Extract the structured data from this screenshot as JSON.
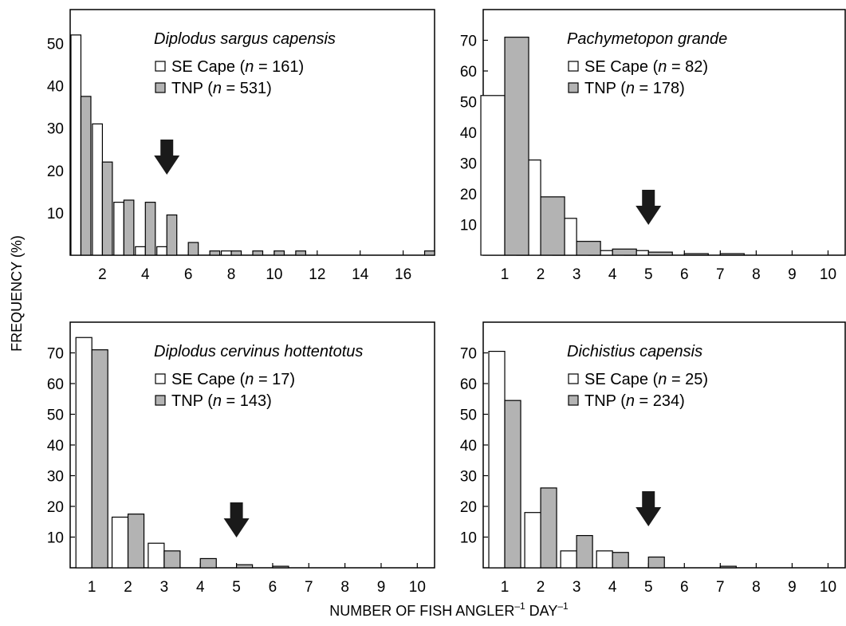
{
  "figure": {
    "ylabel": "FREQUENCY (%)",
    "xlabel": "NUMBER OF FISH ANGLER",
    "xlabel_sup1": "–1",
    "xlabel_mid": " DAY",
    "xlabel_sup2": "–1",
    "colors": {
      "se_cape": "#ffffff",
      "tnp": "#b3b3b3",
      "stroke": "#000000",
      "arrow": "#1a1a1a"
    }
  },
  "chart_data": [
    {
      "type": "bar",
      "title": "Diplodus sargus capensis",
      "legend": [
        {
          "name": "SE Cape",
          "n_prefix": "(",
          "n_italic": "n",
          "n_text": " = 161)"
        },
        {
          "name": "TNP",
          "n_prefix": "(",
          "n_italic": "n",
          "n_text": " = 531)"
        }
      ],
      "x": [
        1,
        2,
        3,
        4,
        5,
        6,
        7,
        8,
        9,
        10,
        11,
        12,
        13,
        14,
        15,
        16,
        17
      ],
      "xticks": [
        2,
        4,
        6,
        8,
        10,
        12,
        14,
        16
      ],
      "xlim": [
        0.5,
        17.5
      ],
      "yticks": [
        10,
        20,
        30,
        40,
        50
      ],
      "ylim": [
        0,
        58
      ],
      "series": [
        {
          "name": "SE Cape",
          "values": [
            52,
            31,
            12.5,
            2,
            2,
            0,
            0,
            1,
            0,
            0,
            0,
            0,
            0,
            0,
            0,
            0,
            0
          ]
        },
        {
          "name": "TNP",
          "values": [
            37.5,
            22,
            13,
            12.5,
            9.5,
            3,
            1,
            1,
            1,
            1,
            1,
            0,
            0,
            0,
            0,
            0,
            1
          ]
        }
      ],
      "arrow_x": 5
    },
    {
      "type": "bar",
      "title": "Pachymetopon grande",
      "legend": [
        {
          "name": "SE Cape",
          "n_prefix": "(",
          "n_italic": "n",
          "n_text": " = 82)"
        },
        {
          "name": "TNP",
          "n_prefix": "(",
          "n_italic": "n",
          "n_text": " = 178)"
        }
      ],
      "x": [
        1,
        2,
        3,
        4,
        5,
        6,
        7,
        8,
        9,
        10
      ],
      "xticks": [
        1,
        2,
        3,
        4,
        5,
        6,
        7,
        8,
        9,
        10
      ],
      "xlim": [
        0.4,
        10.5
      ],
      "yticks": [
        10,
        20,
        30,
        40,
        50,
        60,
        70
      ],
      "ylim": [
        0,
        80
      ],
      "series": [
        {
          "name": "SE Cape",
          "values": [
            52,
            31,
            12,
            1.5,
            1.5,
            0,
            0,
            0,
            0,
            0
          ]
        },
        {
          "name": "TNP",
          "values": [
            71,
            19,
            4.5,
            2,
            1,
            0.5,
            0.5,
            0,
            0,
            0
          ]
        }
      ],
      "arrow_x": 5
    },
    {
      "type": "bar",
      "title": "Diplodus cervinus hottentotus",
      "legend": [
        {
          "name": "SE Cape",
          "n_prefix": "(",
          "n_italic": "n",
          "n_text": " = 17)"
        },
        {
          "name": "TNP",
          "n_prefix": "(",
          "n_italic": "n",
          "n_text": " = 143)"
        }
      ],
      "x": [
        1,
        2,
        3,
        4,
        5,
        6,
        7,
        8,
        9,
        10
      ],
      "xticks": [
        1,
        2,
        3,
        4,
        5,
        6,
        7,
        8,
        9,
        10
      ],
      "xlim": [
        0.4,
        10.5
      ],
      "yticks": [
        10,
        20,
        30,
        40,
        50,
        60,
        70
      ],
      "ylim": [
        0,
        80
      ],
      "series": [
        {
          "name": "SE Cape",
          "values": [
            75,
            16.5,
            8,
            0,
            0,
            0,
            0,
            0,
            0,
            0
          ]
        },
        {
          "name": "TNP",
          "values": [
            71,
            17.5,
            5.5,
            3,
            1,
            0.5,
            0,
            0,
            0,
            0
          ]
        }
      ],
      "arrow_x": 5
    },
    {
      "type": "bar",
      "title": "Dichistius capensis",
      "legend": [
        {
          "name": "SE Cape",
          "n_prefix": "(",
          "n_italic": "n",
          "n_text": " = 25)"
        },
        {
          "name": "TNP",
          "n_prefix": "(",
          "n_italic": "n",
          "n_text": " = 234)"
        }
      ],
      "x": [
        1,
        2,
        3,
        4,
        5,
        6,
        7,
        8,
        9,
        10
      ],
      "xticks": [
        1,
        2,
        3,
        4,
        5,
        6,
        7,
        8,
        9,
        10
      ],
      "xlim": [
        0.4,
        10.5
      ],
      "yticks": [
        10,
        20,
        30,
        40,
        50,
        60,
        70
      ],
      "ylim": [
        0,
        80
      ],
      "series": [
        {
          "name": "SE Cape",
          "values": [
            70.5,
            18,
            5.5,
            5.5,
            0,
            0,
            0,
            0,
            0,
            0
          ]
        },
        {
          "name": "TNP",
          "values": [
            54.5,
            26,
            10.5,
            5,
            3.5,
            0,
            0.5,
            0,
            0,
            0
          ]
        }
      ],
      "arrow_x": 5
    }
  ]
}
